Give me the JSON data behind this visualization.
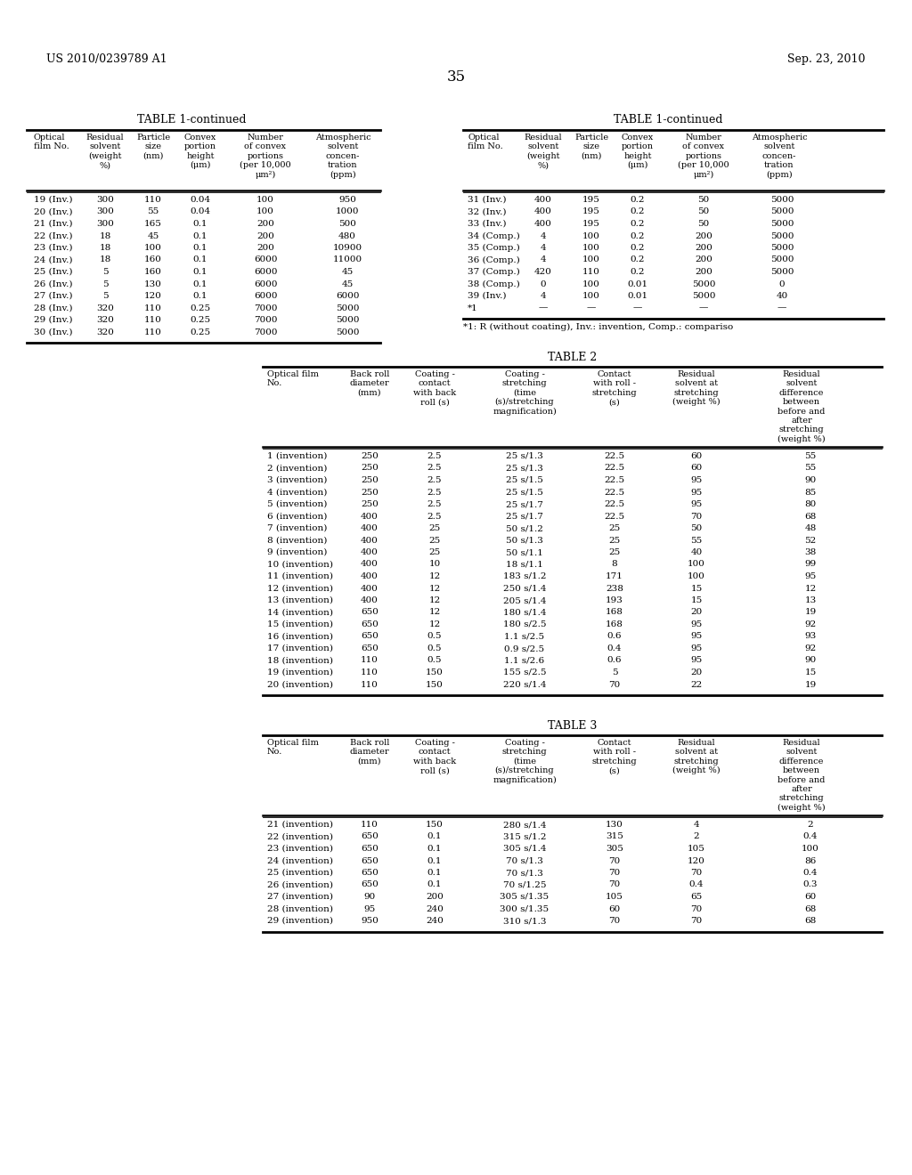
{
  "header_left": "US 2010/0239789 A1",
  "header_right": "Sep. 23, 2010",
  "page_number": "35",
  "background_color": "#ffffff",
  "table1_title": "TABLE 1-continued",
  "table1_left_rows": [
    [
      "19 (Inv.)",
      "300",
      "110",
      "0.04",
      "100",
      "950"
    ],
    [
      "20 (Inv.)",
      "300",
      "55",
      "0.04",
      "100",
      "1000"
    ],
    [
      "21 (Inv.)",
      "300",
      "165",
      "0.1",
      "200",
      "500"
    ],
    [
      "22 (Inv.)",
      "18",
      "45",
      "0.1",
      "200",
      "480"
    ],
    [
      "23 (Inv.)",
      "18",
      "100",
      "0.1",
      "200",
      "10900"
    ],
    [
      "24 (Inv.)",
      "18",
      "160",
      "0.1",
      "6000",
      "11000"
    ],
    [
      "25 (Inv.)",
      "5",
      "160",
      "0.1",
      "6000",
      "45"
    ],
    [
      "26 (Inv.)",
      "5",
      "130",
      "0.1",
      "6000",
      "45"
    ],
    [
      "27 (Inv.)",
      "5",
      "120",
      "0.1",
      "6000",
      "6000"
    ],
    [
      "28 (Inv.)",
      "320",
      "110",
      "0.25",
      "7000",
      "5000"
    ],
    [
      "29 (Inv.)",
      "320",
      "110",
      "0.25",
      "7000",
      "5000"
    ],
    [
      "30 (Inv.)",
      "320",
      "110",
      "0.25",
      "7000",
      "5000"
    ]
  ],
  "table1_right_rows": [
    [
      "31 (Inv.)",
      "400",
      "195",
      "0.2",
      "50",
      "5000"
    ],
    [
      "32 (Inv.)",
      "400",
      "195",
      "0.2",
      "50",
      "5000"
    ],
    [
      "33 (Inv.)",
      "400",
      "195",
      "0.2",
      "50",
      "5000"
    ],
    [
      "34 (Comp.)",
      "4",
      "100",
      "0.2",
      "200",
      "5000"
    ],
    [
      "35 (Comp.)",
      "4",
      "100",
      "0.2",
      "200",
      "5000"
    ],
    [
      "36 (Comp.)",
      "4",
      "100",
      "0.2",
      "200",
      "5000"
    ],
    [
      "37 (Comp.)",
      "420",
      "110",
      "0.2",
      "200",
      "5000"
    ],
    [
      "38 (Comp.)",
      "0",
      "100",
      "0.01",
      "5000",
      "0"
    ],
    [
      "39 (Inv.)",
      "4",
      "100",
      "0.01",
      "5000",
      "40"
    ],
    [
      "*1",
      "—",
      "—",
      "—",
      "—",
      "—"
    ]
  ],
  "table1_footnote": "*1: R (without coating), Inv.: invention, Comp.: compariso",
  "table2_title": "TABLE 2",
  "table2_rows": [
    [
      "1 (invention)",
      "250",
      "2.5",
      "25 s/1.3",
      "22.5",
      "60",
      "55"
    ],
    [
      "2 (invention)",
      "250",
      "2.5",
      "25 s/1.3",
      "22.5",
      "60",
      "55"
    ],
    [
      "3 (invention)",
      "250",
      "2.5",
      "25 s/1.5",
      "22.5",
      "95",
      "90"
    ],
    [
      "4 (invention)",
      "250",
      "2.5",
      "25 s/1.5",
      "22.5",
      "95",
      "85"
    ],
    [
      "5 (invention)",
      "250",
      "2.5",
      "25 s/1.7",
      "22.5",
      "95",
      "80"
    ],
    [
      "6 (invention)",
      "400",
      "2.5",
      "25 s/1.7",
      "22.5",
      "70",
      "68"
    ],
    [
      "7 (invention)",
      "400",
      "25",
      "50 s/1.2",
      "25",
      "50",
      "48"
    ],
    [
      "8 (invention)",
      "400",
      "25",
      "50 s/1.3",
      "25",
      "55",
      "52"
    ],
    [
      "9 (invention)",
      "400",
      "25",
      "50 s/1.1",
      "25",
      "40",
      "38"
    ],
    [
      "10 (invention)",
      "400",
      "10",
      "18 s/1.1",
      "8",
      "100",
      "99"
    ],
    [
      "11 (invention)",
      "400",
      "12",
      "183 s/1.2",
      "171",
      "100",
      "95"
    ],
    [
      "12 (invention)",
      "400",
      "12",
      "250 s/1.4",
      "238",
      "15",
      "12"
    ],
    [
      "13 (invention)",
      "400",
      "12",
      "205 s/1.4",
      "193",
      "15",
      "13"
    ],
    [
      "14 (invention)",
      "650",
      "12",
      "180 s/1.4",
      "168",
      "20",
      "19"
    ],
    [
      "15 (invention)",
      "650",
      "12",
      "180 s/2.5",
      "168",
      "95",
      "92"
    ],
    [
      "16 (invention)",
      "650",
      "0.5",
      "1.1 s/2.5",
      "0.6",
      "95",
      "93"
    ],
    [
      "17 (invention)",
      "650",
      "0.5",
      "0.9 s/2.5",
      "0.4",
      "95",
      "92"
    ],
    [
      "18 (invention)",
      "110",
      "0.5",
      "1.1 s/2.6",
      "0.6",
      "95",
      "90"
    ],
    [
      "19 (invention)",
      "110",
      "150",
      "155 s/2.5",
      "5",
      "20",
      "15"
    ],
    [
      "20 (invention)",
      "110",
      "150",
      "220 s/1.4",
      "70",
      "22",
      "19"
    ]
  ],
  "table3_title": "TABLE 3",
  "table3_rows": [
    [
      "21 (invention)",
      "110",
      "150",
      "280 s/1.4",
      "130",
      "4",
      "2"
    ],
    [
      "22 (invention)",
      "650",
      "0.1",
      "315 s/1.2",
      "315",
      "2",
      "0.4"
    ],
    [
      "23 (invention)",
      "650",
      "0.1",
      "305 s/1.4",
      "305",
      "105",
      "100"
    ],
    [
      "24 (invention)",
      "650",
      "0.1",
      "70 s/1.3",
      "70",
      "120",
      "86"
    ],
    [
      "25 (invention)",
      "650",
      "0.1",
      "70 s/1.3",
      "70",
      "70",
      "0.4"
    ],
    [
      "26 (invention)",
      "650",
      "0.1",
      "70 s/1.25",
      "70",
      "0.4",
      "0.3"
    ],
    [
      "27 (invention)",
      "90",
      "200",
      "305 s/1.35",
      "105",
      "65",
      "60"
    ],
    [
      "28 (invention)",
      "95",
      "240",
      "300 s/1.35",
      "60",
      "70",
      "68"
    ],
    [
      "29 (invention)",
      "950",
      "240",
      "310 s/1.3",
      "70",
      "70",
      "68"
    ]
  ]
}
